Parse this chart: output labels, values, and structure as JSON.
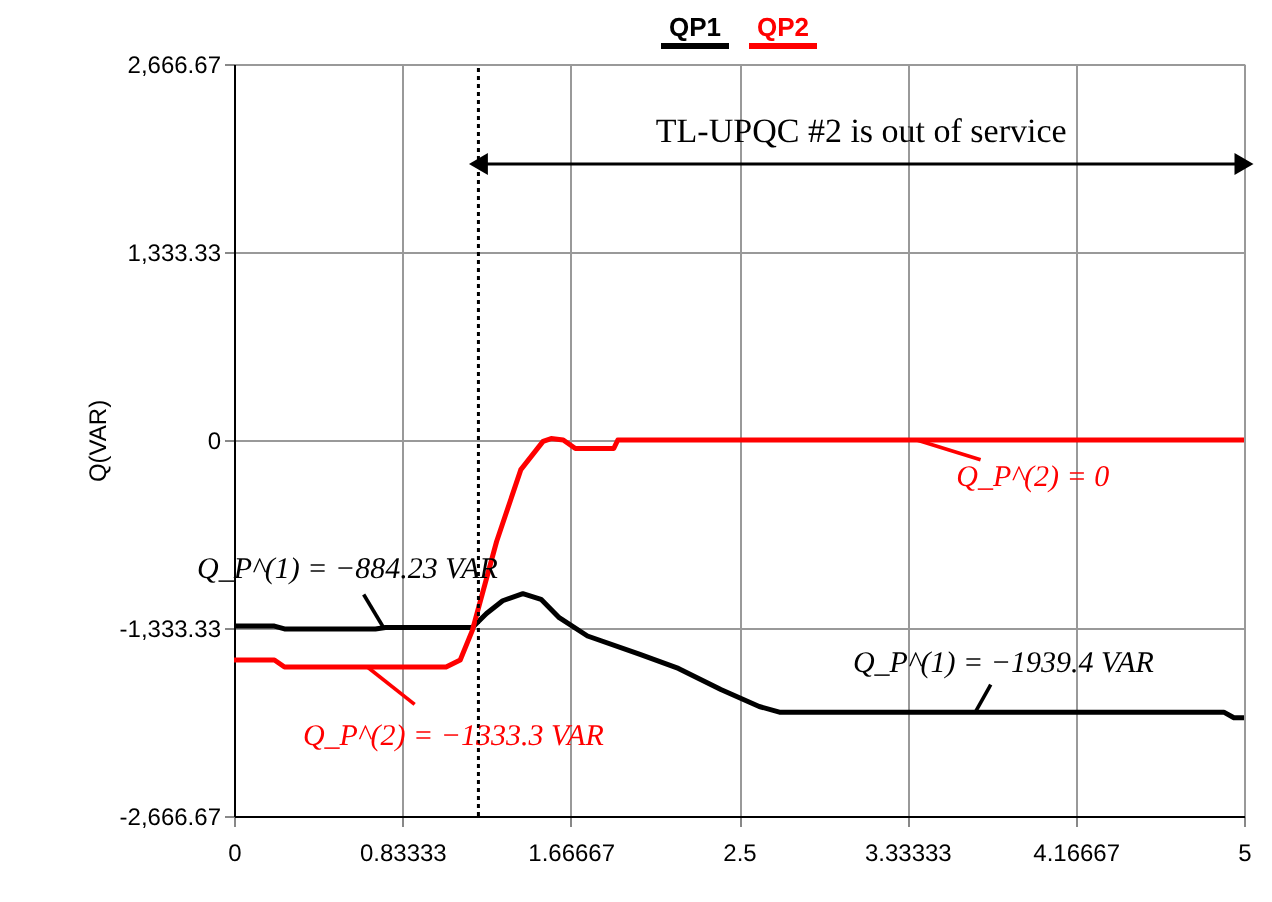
{
  "chart_data": {
    "type": "line",
    "ylabel": "Q(VAR)",
    "x": [
      0,
      0.2,
      0.25,
      0.7,
      0.75,
      1.18,
      1.25,
      1.33,
      1.43,
      1.52,
      1.61,
      1.75,
      2.01,
      2.2,
      2.41,
      2.6,
      2.7,
      4.9,
      4.95,
      5
    ],
    "series": [
      {
        "name": "QP1",
        "color": "#000000",
        "values": [
          -1320,
          -1320,
          -1340,
          -1340,
          -1330,
          -1330,
          -1230,
          -1140,
          -1090,
          -1130,
          -1260,
          -1390,
          -1520,
          -1620,
          -1770,
          -1890,
          -1930,
          -1930,
          -1970,
          -1970
        ]
      },
      {
        "name": "QP2",
        "color": "#ff0000",
        "x": [
          0,
          0.2,
          0.25,
          1.05,
          1.12,
          1.18,
          1.3,
          1.42,
          1.53,
          1.57,
          1.63,
          1.69,
          1.88,
          1.9,
          5
        ],
        "values": [
          -1560,
          -1560,
          -1610,
          -1610,
          -1560,
          -1350,
          -720,
          -210,
          -10,
          10,
          0,
          -60,
          -60,
          0,
          0
        ]
      }
    ],
    "xlim": [
      0,
      5
    ],
    "xticks": [
      0,
      0.83333,
      1.66667,
      2.5,
      3.33333,
      4.16667,
      5
    ],
    "ylim": [
      -2666.67,
      2666.67
    ],
    "yticks": [
      {
        "value": -2666.67,
        "label": "-2,666.67"
      },
      {
        "value": -1333.33,
        "label": "-1,333.33"
      },
      0,
      {
        "value": 1333.33,
        "label": "1,333.33"
      },
      {
        "value": 2666.67,
        "label": "2,666.67"
      }
    ],
    "grid": true,
    "legend": "top",
    "line_style": "solid",
    "marker": "none",
    "ref_lines": [
      {
        "axis": "x",
        "value": 1.21,
        "line_style": "dotted",
        "color": "#000000"
      }
    ],
    "annotations": [
      "TL-UPQC #2 is out of service",
      {
        "text": "Q_P^(1) = −884.23 VAR",
        "x": 0.74,
        "y": -1330
      },
      {
        "text": "Q_P^(2) = −1333.3 VAR",
        "x": 0.66,
        "y": -1610
      },
      {
        "text": "Q_P^(1) = −1939.4 VAR",
        "x": 3.67,
        "y": -1930
      },
      {
        "text": "Q_P^(2) = 0",
        "x": 3.38,
        "y": 0
      }
    ]
  }
}
